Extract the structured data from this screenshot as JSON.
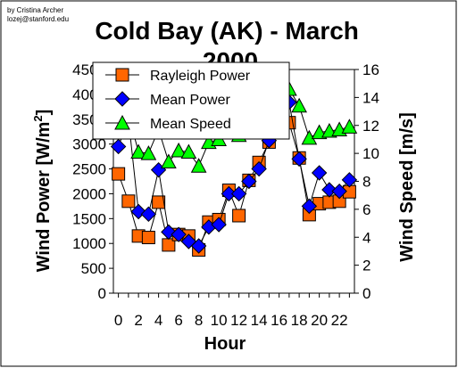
{
  "credit": {
    "line1": "by Cristina Archer",
    "line2": "lozej@stanford.edu"
  },
  "chart_data": {
    "type": "line",
    "title": "Cold Bay (AK) - March 2000",
    "xlabel": "Hour",
    "ylabel_left": "Wind Power [W/m",
    "ylabel_left_sup": "2",
    "ylabel_left_end": "]",
    "ylabel_right": "Wind Speed [m/s]",
    "x": [
      0,
      1,
      2,
      3,
      4,
      5,
      6,
      7,
      8,
      9,
      10,
      11,
      12,
      13,
      14,
      15,
      16,
      17,
      18,
      19,
      20,
      21,
      22,
      23
    ],
    "x_tick_labels": [
      "0",
      "2",
      "4",
      "6",
      "8",
      "10",
      "12",
      "14",
      "16",
      "18",
      "20",
      "22"
    ],
    "xlim": [
      -0.5,
      23.5
    ],
    "ylim_left": [
      0,
      4500
    ],
    "ylim_right": [
      0,
      16
    ],
    "y_ticks_left": [
      "0",
      "500",
      "1000",
      "1500",
      "2000",
      "2500",
      "3000",
      "3500",
      "4000",
      "4500"
    ],
    "y_ticks_right": [
      "0",
      "2",
      "4",
      "6",
      "8",
      "10",
      "12",
      "14",
      "16"
    ],
    "legend_position": "top-left",
    "series": [
      {
        "name": "Rayleigh Power",
        "axis": "left",
        "color": "#ff6600",
        "marker": "square",
        "values": [
          2400,
          1850,
          1150,
          1120,
          1830,
          970,
          1180,
          1150,
          870,
          1430,
          1480,
          2070,
          1560,
          2270,
          2630,
          3040,
          4200,
          3430,
          2720,
          1580,
          1800,
          1830,
          1850,
          2040
        ]
      },
      {
        "name": "Mean Power",
        "axis": "left",
        "color": "#0000ff",
        "marker": "diamond",
        "values": [
          2950,
          3500,
          1640,
          1590,
          2480,
          1230,
          1180,
          1040,
          950,
          1330,
          1380,
          2000,
          2000,
          2250,
          2500,
          3070,
          4100,
          3840,
          2700,
          1750,
          2420,
          2080,
          2050,
          2280
        ]
      },
      {
        "name": "Mean Speed",
        "axis": "right",
        "color": "#00ff00",
        "marker": "triangle",
        "values": [
          12.2,
          12.8,
          10.1,
          10.0,
          11.7,
          9.4,
          10.2,
          10.1,
          9.1,
          10.8,
          11.0,
          11.5,
          11.3,
          12.2,
          12.6,
          13.6,
          15.2,
          14.6,
          13.4,
          11.1,
          11.5,
          11.6,
          11.7,
          11.9
        ]
      }
    ]
  }
}
